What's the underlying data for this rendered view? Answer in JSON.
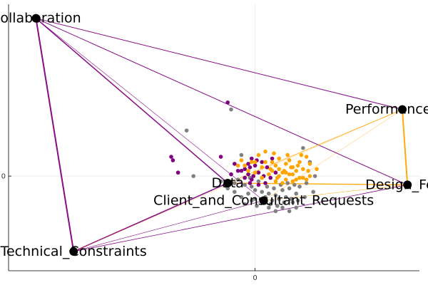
{
  "chart_data": {
    "type": "scatter",
    "title": "",
    "xlabel": "",
    "ylabel": "",
    "xlim": [
      -0.72,
      0.48
    ],
    "ylim": [
      -0.27,
      0.49
    ],
    "x_ticks": [
      {
        "value": 0,
        "label": "0"
      }
    ],
    "y_ticks": [
      {
        "value": 0,
        "label": "0"
      }
    ],
    "grid": true,
    "legend": "none",
    "colors": {
      "purple": "#800080",
      "orange": "#FFA500",
      "gray": "#808080",
      "node": "#000000",
      "grid": "#e6e6e6",
      "axis": "#000000"
    },
    "nodes": [
      {
        "id": "collab",
        "label": "Collaboration",
        "x": -0.64,
        "y": 0.45
      },
      {
        "id": "perf",
        "label": "Performance_Par",
        "x": 0.43,
        "y": 0.19
      },
      {
        "id": "design",
        "label": "Design_Feas",
        "x": 0.445,
        "y": -0.025
      },
      {
        "id": "data",
        "label": "Data",
        "x": -0.08,
        "y": -0.02
      },
      {
        "id": "client",
        "label": "Client_and_Consultant_Requests",
        "x": 0.025,
        "y": -0.07
      },
      {
        "id": "tech",
        "label": "Technical_Constraints",
        "x": -0.53,
        "y": -0.215
      }
    ],
    "edges": [
      {
        "from": "collab",
        "to": "tech",
        "color": "purple",
        "width": 2
      },
      {
        "from": "collab",
        "to": "perf",
        "color": "purple",
        "width": 1
      },
      {
        "from": "collab",
        "to": "design",
        "color": "purple",
        "width": 1
      },
      {
        "from": "collab",
        "to": "data",
        "color": "purple",
        "width": 1.5
      },
      {
        "from": "collab",
        "to": "client",
        "color": "purple",
        "width": 0.6
      },
      {
        "from": "tech",
        "to": "data",
        "color": "purple",
        "width": 1.5
      },
      {
        "from": "tech",
        "to": "design",
        "color": "purple",
        "width": 0.8
      },
      {
        "from": "tech",
        "to": "client",
        "color": "purple",
        "width": 0.6
      },
      {
        "from": "tech",
        "to": "perf",
        "color": "orange",
        "width": 0.3
      },
      {
        "from": "perf",
        "to": "design",
        "color": "orange",
        "width": 2
      },
      {
        "from": "perf",
        "to": "data",
        "color": "orange",
        "width": 0.8
      },
      {
        "from": "perf",
        "to": "client",
        "color": "orange",
        "width": 0.4
      },
      {
        "from": "design",
        "to": "data",
        "color": "orange",
        "width": 1.3
      },
      {
        "from": "design",
        "to": "client",
        "color": "orange",
        "width": 0.5
      }
    ],
    "series": [
      {
        "color": "purple",
        "points": [
          [
            -0.245,
            0.055
          ],
          [
            -0.24,
            0.045
          ],
          [
            -0.225,
            0.01
          ],
          [
            -0.08,
            0.21
          ],
          [
            -0.1,
            0.055
          ],
          [
            -0.04,
            0.015
          ],
          [
            -0.06,
            0.035
          ],
          [
            -0.015,
            0.025
          ],
          [
            -0.03,
            0.02
          ],
          [
            -0.02,
            0.005
          ],
          [
            -0.005,
            0.0
          ],
          [
            -0.03,
            -0.005
          ],
          [
            -0.01,
            -0.01
          ],
          [
            0.01,
            0.01
          ],
          [
            0.02,
            0.04
          ],
          [
            -0.05,
            0.015
          ],
          [
            -0.01,
            0.05
          ],
          [
            0.0,
            0.03
          ],
          [
            0.03,
            -0.02
          ],
          [
            0.035,
            0.025
          ],
          [
            -0.015,
            -0.02
          ],
          [
            0.005,
            0.045
          ],
          [
            0.05,
            0.05
          ],
          [
            -0.03,
            0.03
          ],
          [
            0.045,
            -0.005
          ],
          [
            -0.07,
            0.005
          ],
          [
            -0.02,
            0.035
          ],
          [
            0.01,
            -0.025
          ],
          [
            0.06,
            0.01
          ],
          [
            0.025,
            0.0
          ]
        ]
      },
      {
        "color": "orange",
        "points": [
          [
            -0.03,
            0.03
          ],
          [
            -0.01,
            0.04
          ],
          [
            0.01,
            0.06
          ],
          [
            0.03,
            0.07
          ],
          [
            0.05,
            0.04
          ],
          [
            0.055,
            0.065
          ],
          [
            0.07,
            0.02
          ],
          [
            0.08,
            0.01
          ],
          [
            0.09,
            0.035
          ],
          [
            0.1,
            0.005
          ],
          [
            0.11,
            0.025
          ],
          [
            0.12,
            -0.01
          ],
          [
            0.13,
            0.04
          ],
          [
            0.14,
            -0.005
          ],
          [
            0.15,
            0.055
          ],
          [
            0.16,
            0.035
          ],
          [
            0.18,
            0.02
          ],
          [
            0.08,
            -0.02
          ],
          [
            0.06,
            -0.015
          ],
          [
            0.04,
            0.005
          ],
          [
            0.02,
            -0.005
          ],
          [
            0.09,
            -0.01
          ],
          [
            0.11,
            -0.015
          ],
          [
            0.14,
            0.02
          ],
          [
            0.16,
            0.0
          ],
          [
            -0.05,
            0.03
          ],
          [
            -0.02,
            0.015
          ],
          [
            0.0,
            0.01
          ],
          [
            0.02,
            0.025
          ],
          [
            0.045,
            0.02
          ],
          [
            0.07,
            0.05
          ],
          [
            0.1,
            0.045
          ],
          [
            0.12,
            0.015
          ],
          [
            0.135,
            0.06
          ],
          [
            0.155,
            0.015
          ],
          [
            0.065,
            -0.005
          ],
          [
            0.085,
            0.015
          ],
          [
            0.105,
            0.025
          ],
          [
            0.125,
            0.03
          ],
          [
            0.03,
            0.04
          ],
          [
            0.05,
            0.015
          ],
          [
            0.07,
            0.0
          ],
          [
            0.09,
            0.01
          ],
          [
            0.11,
            0.005
          ],
          [
            0.13,
            -0.005
          ],
          [
            0.0,
            0.04
          ],
          [
            -0.04,
            0.045
          ],
          [
            0.095,
            0.06
          ],
          [
            0.06,
            0.03
          ],
          [
            0.15,
            -0.01
          ]
        ]
      },
      {
        "color": "gray",
        "points": [
          [
            -0.2,
            0.13
          ],
          [
            -0.07,
            0.19
          ],
          [
            -0.04,
            0.06
          ],
          [
            -0.18,
            0.0
          ],
          [
            -0.1,
            -0.015
          ],
          [
            -0.06,
            -0.02
          ],
          [
            -0.03,
            -0.025
          ],
          [
            -0.01,
            -0.03
          ],
          [
            0.0,
            -0.04
          ],
          [
            0.02,
            -0.045
          ],
          [
            0.04,
            -0.05
          ],
          [
            0.06,
            -0.055
          ],
          [
            0.08,
            -0.04
          ],
          [
            0.1,
            -0.035
          ],
          [
            0.12,
            -0.05
          ],
          [
            0.13,
            -0.03
          ],
          [
            0.15,
            -0.02
          ],
          [
            0.17,
            -0.045
          ],
          [
            0.03,
            -0.06
          ],
          [
            0.05,
            -0.07
          ],
          [
            0.07,
            -0.065
          ],
          [
            0.09,
            -0.06
          ],
          [
            0.11,
            -0.075
          ],
          [
            -0.02,
            -0.05
          ],
          [
            -0.04,
            -0.06
          ],
          [
            -0.06,
            -0.045
          ],
          [
            0.0,
            -0.065
          ],
          [
            0.025,
            -0.075
          ],
          [
            0.045,
            -0.08
          ],
          [
            0.065,
            -0.085
          ],
          [
            0.085,
            -0.075
          ],
          [
            0.105,
            -0.065
          ],
          [
            0.125,
            -0.07
          ],
          [
            0.145,
            -0.06
          ],
          [
            0.01,
            -0.015
          ],
          [
            0.035,
            -0.03
          ],
          [
            0.055,
            -0.035
          ],
          [
            0.075,
            -0.025
          ],
          [
            0.095,
            -0.02
          ],
          [
            0.115,
            -0.025
          ],
          [
            -0.08,
            -0.035
          ],
          [
            -0.05,
            -0.01
          ],
          [
            -0.015,
            -0.005
          ],
          [
            0.16,
            0.04
          ],
          [
            0.14,
            0.08
          ],
          [
            0.175,
            0.0
          ],
          [
            -0.03,
            -0.08
          ],
          [
            0.005,
            -0.085
          ],
          [
            0.04,
            -0.09
          ],
          [
            0.08,
            -0.09
          ],
          [
            0.12,
            -0.09
          ],
          [
            -0.01,
            -0.07
          ],
          [
            0.06,
            -0.1
          ],
          [
            0.1,
            -0.1
          ]
        ]
      }
    ]
  }
}
